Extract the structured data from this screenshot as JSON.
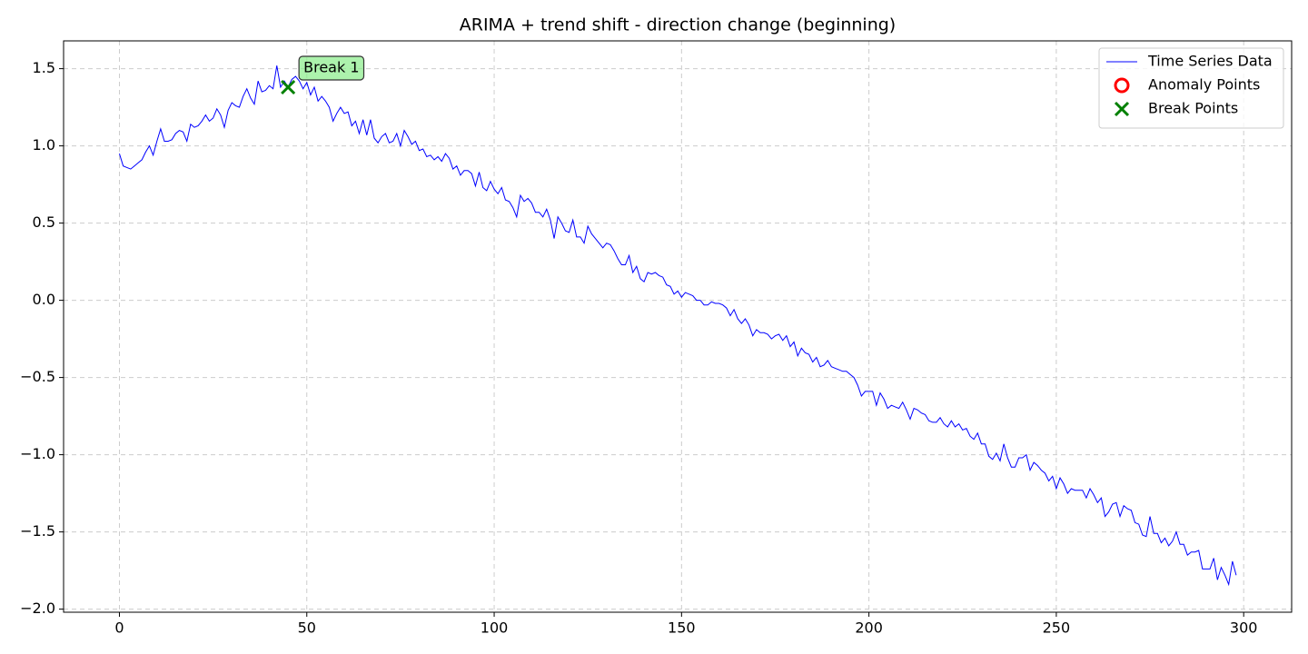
{
  "chart_data": {
    "type": "line",
    "title": "ARIMA + trend shift - direction change (beginning)",
    "xlim": [
      -14.9,
      312.8
    ],
    "ylim": [
      -2.02,
      1.68
    ],
    "xticks": [
      0,
      50,
      100,
      150,
      200,
      250,
      300
    ],
    "yticks": [
      {
        "value": -2,
        "label": "−2.0"
      },
      {
        "value": -1.5,
        "label": "−1.5"
      },
      {
        "value": -1,
        "label": "−1.0"
      },
      {
        "value": -0.5,
        "label": "−0.5"
      },
      {
        "value": 0,
        "label": "0.0"
      },
      0.5,
      {
        "value": 1,
        "label": "1.0"
      },
      1.5
    ],
    "grid": true,
    "legend": "upper right",
    "series": [
      {
        "name": "Time Series Data",
        "color": "#0000ff",
        "style": "line",
        "x": [
          0,
          1,
          2,
          3,
          4,
          5,
          6,
          7,
          8,
          9,
          10,
          11,
          12,
          13,
          14,
          15,
          16,
          17,
          18,
          19,
          20,
          21,
          22,
          23,
          24,
          25,
          26,
          27,
          28,
          29,
          30,
          31,
          32,
          33,
          34,
          35,
          36,
          37,
          38,
          39,
          40,
          41,
          42,
          43,
          44,
          45,
          46,
          47,
          48,
          49,
          50,
          51,
          52,
          53,
          54,
          55,
          56,
          57,
          58,
          59,
          60,
          61,
          62,
          63,
          64,
          65,
          66,
          67,
          68,
          69,
          70,
          71,
          72,
          73,
          74,
          75,
          76,
          77,
          78,
          79,
          80,
          81,
          82,
          83,
          84,
          85,
          86,
          87,
          88,
          89,
          90,
          91,
          92,
          93,
          94,
          95,
          96,
          97,
          98,
          99,
          100,
          101,
          102,
          103,
          104,
          105,
          106,
          107,
          108,
          109,
          110,
          111,
          112,
          113,
          114,
          115,
          116,
          117,
          118,
          119,
          120,
          121,
          122,
          123,
          124,
          125,
          126,
          127,
          128,
          129,
          130,
          131,
          132,
          133,
          134,
          135,
          136,
          137,
          138,
          139,
          140,
          141,
          142,
          143,
          144,
          145,
          146,
          147,
          148,
          149,
          150,
          151,
          152,
          153,
          154,
          155,
          156,
          157,
          158,
          159,
          160,
          161,
          162,
          163,
          164,
          165,
          166,
          167,
          168,
          169,
          170,
          171,
          172,
          173,
          174,
          175,
          176,
          177,
          178,
          179,
          180,
          181,
          182,
          183,
          184,
          185,
          186,
          187,
          188,
          189,
          190,
          191,
          192,
          193,
          194,
          195,
          196,
          197,
          198,
          199,
          200,
          201,
          202,
          203,
          204,
          205,
          206,
          207,
          208,
          209,
          210,
          211,
          212,
          213,
          214,
          215,
          216,
          217,
          218,
          219,
          220,
          221,
          222,
          223,
          224,
          225,
          226,
          227,
          228,
          229,
          230,
          231,
          232,
          233,
          234,
          235,
          236,
          237,
          238,
          239,
          240,
          241,
          242,
          243,
          244,
          245,
          246,
          247,
          248,
          249,
          250,
          251,
          252,
          253,
          254,
          255,
          256,
          257,
          258,
          259,
          260,
          261,
          262,
          263,
          264,
          265,
          266,
          267,
          268,
          269,
          270,
          271,
          272,
          273,
          274,
          275,
          276,
          277,
          278,
          279,
          280,
          281,
          282,
          283,
          284,
          285,
          286,
          287,
          288,
          289,
          290,
          291,
          292,
          293,
          294,
          295,
          296,
          297,
          298
        ],
        "values": [
          0.95,
          0.87,
          0.86,
          0.85,
          0.87,
          0.89,
          0.91,
          0.96,
          1.0,
          0.94,
          1.03,
          1.11,
          1.03,
          1.03,
          1.04,
          1.08,
          1.1,
          1.09,
          1.03,
          1.14,
          1.12,
          1.13,
          1.16,
          1.2,
          1.16,
          1.18,
          1.24,
          1.2,
          1.12,
          1.23,
          1.28,
          1.26,
          1.25,
          1.32,
          1.37,
          1.31,
          1.27,
          1.42,
          1.35,
          1.36,
          1.39,
          1.37,
          1.52,
          1.38,
          1.42,
          1.38,
          1.43,
          1.45,
          1.42,
          1.37,
          1.41,
          1.33,
          1.38,
          1.29,
          1.32,
          1.29,
          1.25,
          1.16,
          1.21,
          1.25,
          1.21,
          1.22,
          1.13,
          1.16,
          1.08,
          1.17,
          1.07,
          1.17,
          1.05,
          1.02,
          1.06,
          1.08,
          1.02,
          1.03,
          1.08,
          1.0,
          1.1,
          1.06,
          1.01,
          1.03,
          0.97,
          0.98,
          0.93,
          0.94,
          0.91,
          0.93,
          0.9,
          0.95,
          0.92,
          0.85,
          0.87,
          0.81,
          0.84,
          0.84,
          0.82,
          0.74,
          0.83,
          0.73,
          0.71,
          0.77,
          0.72,
          0.69,
          0.73,
          0.65,
          0.64,
          0.6,
          0.54,
          0.68,
          0.64,
          0.66,
          0.63,
          0.57,
          0.57,
          0.54,
          0.59,
          0.52,
          0.4,
          0.54,
          0.5,
          0.45,
          0.44,
          0.52,
          0.41,
          0.41,
          0.37,
          0.48,
          0.43,
          0.4,
          0.37,
          0.34,
          0.37,
          0.36,
          0.32,
          0.27,
          0.23,
          0.23,
          0.29,
          0.18,
          0.22,
          0.14,
          0.12,
          0.18,
          0.17,
          0.18,
          0.16,
          0.15,
          0.1,
          0.09,
          0.04,
          0.06,
          0.02,
          0.05,
          0.04,
          0.03,
          0.0,
          0.0,
          -0.03,
          -0.03,
          -0.01,
          -0.02,
          -0.02,
          -0.03,
          -0.05,
          -0.1,
          -0.06,
          -0.12,
          -0.15,
          -0.12,
          -0.16,
          -0.23,
          -0.19,
          -0.21,
          -0.21,
          -0.22,
          -0.25,
          -0.23,
          -0.22,
          -0.26,
          -0.23,
          -0.3,
          -0.27,
          -0.36,
          -0.31,
          -0.34,
          -0.35,
          -0.4,
          -0.37,
          -0.43,
          -0.42,
          -0.39,
          -0.43,
          -0.44,
          -0.45,
          -0.46,
          -0.46,
          -0.48,
          -0.5,
          -0.55,
          -0.62,
          -0.59,
          -0.59,
          -0.59,
          -0.68,
          -0.6,
          -0.64,
          -0.7,
          -0.68,
          -0.69,
          -0.7,
          -0.66,
          -0.71,
          -0.77,
          -0.7,
          -0.71,
          -0.73,
          -0.74,
          -0.78,
          -0.79,
          -0.79,
          -0.76,
          -0.8,
          -0.82,
          -0.78,
          -0.82,
          -0.8,
          -0.84,
          -0.83,
          -0.88,
          -0.9,
          -0.86,
          -0.93,
          -0.93,
          -1.01,
          -1.03,
          -0.99,
          -1.04,
          -0.93,
          -1.02,
          -1.08,
          -1.08,
          -1.02,
          -1.02,
          -1.0,
          -1.1,
          -1.05,
          -1.07,
          -1.1,
          -1.12,
          -1.17,
          -1.14,
          -1.22,
          -1.15,
          -1.19,
          -1.25,
          -1.22,
          -1.23,
          -1.23,
          -1.23,
          -1.28,
          -1.22,
          -1.26,
          -1.31,
          -1.28,
          -1.4,
          -1.37,
          -1.32,
          -1.31,
          -1.4,
          -1.33,
          -1.35,
          -1.36,
          -1.44,
          -1.45,
          -1.52,
          -1.53,
          -1.4,
          -1.51,
          -1.51,
          -1.57,
          -1.54,
          -1.59,
          -1.56,
          -1.5,
          -1.58,
          -1.58,
          -1.65,
          -1.63,
          -1.63,
          -1.62,
          -1.74,
          -1.74,
          -1.74,
          -1.67,
          -1.81,
          -1.73,
          -1.78,
          -1.84,
          -1.69,
          -1.78
        ]
      },
      {
        "name": "Anomaly Points",
        "color": "#ff0000",
        "style": "circle",
        "x": [],
        "values": []
      },
      {
        "name": "Break Points",
        "color": "#008000",
        "style": "cross",
        "x": [
          45
        ],
        "values": [
          1.38
        ]
      }
    ],
    "annotations": [
      {
        "text": "Break 1"
      }
    ]
  }
}
